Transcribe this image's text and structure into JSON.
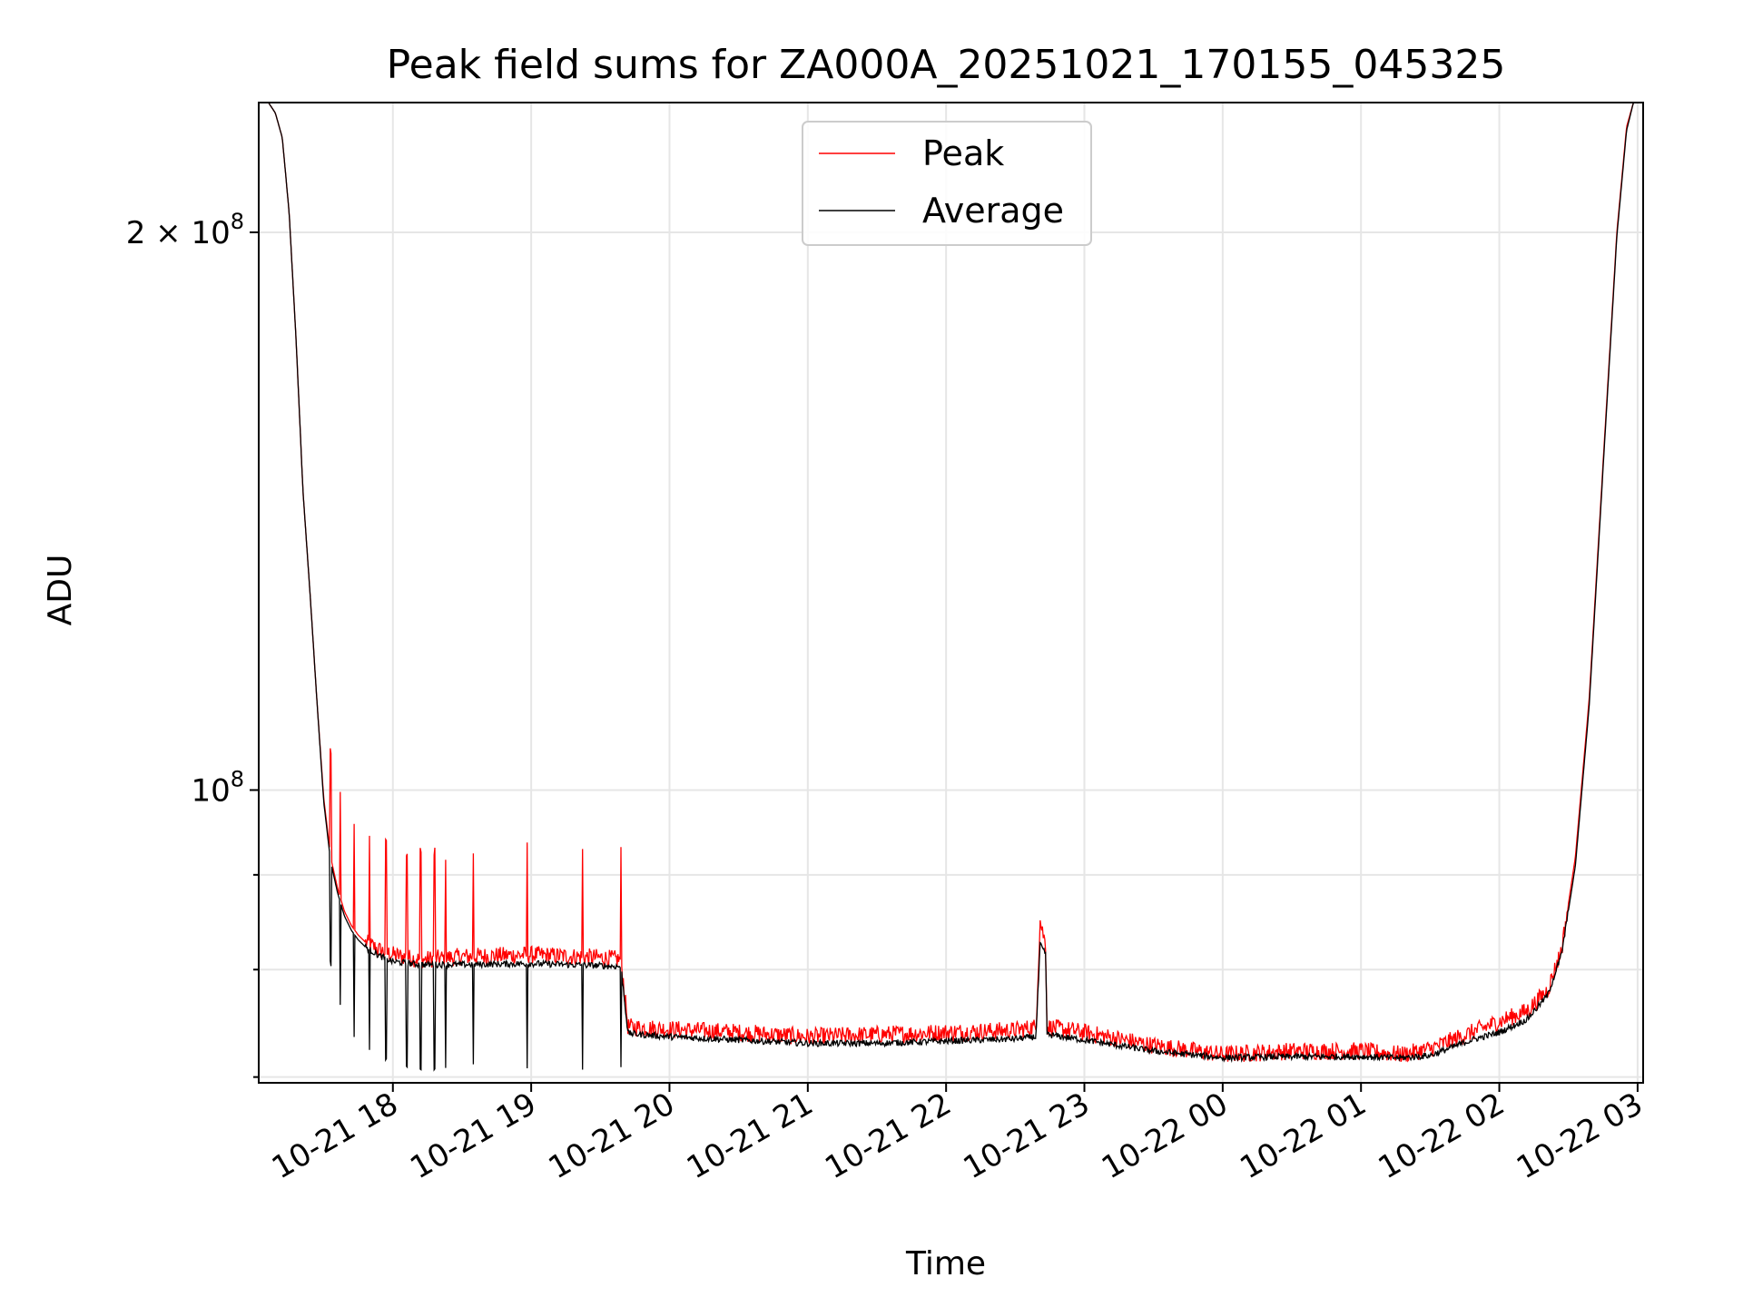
{
  "chart_data": {
    "type": "line",
    "title": "Peak field sums for ZA000A_20251021_170155_045325",
    "xlabel": "Time",
    "ylabel": "ADU",
    "yscale": "log",
    "ylim": [
      69500000,
      235000000
    ],
    "x_unit": "hours since 2025-10-21 00:00",
    "xlim": [
      17.03,
      27.04
    ],
    "grid": true,
    "legend_position": "upper center",
    "x_ticks": [
      {
        "value": 18,
        "label": "10-21 18"
      },
      {
        "value": 19,
        "label": "10-21 19"
      },
      {
        "value": 20,
        "label": "10-21 20"
      },
      {
        "value": 21,
        "label": "10-21 21"
      },
      {
        "value": 22,
        "label": "10-21 22"
      },
      {
        "value": 23,
        "label": "10-21 23"
      },
      {
        "value": 24,
        "label": "10-22 00"
      },
      {
        "value": 25,
        "label": "10-22 01"
      },
      {
        "value": 26,
        "label": "10-22 02"
      },
      {
        "value": 27,
        "label": "10-22 03"
      }
    ],
    "y_major_ticks": [
      {
        "value": 100000000,
        "base": "10",
        "exp": "8",
        "mult": ""
      },
      {
        "value": 200000000,
        "base": "10",
        "exp": "8",
        "mult": "2 × "
      }
    ],
    "y_minor_ticks": [
      70000000,
      80000000,
      90000000
    ],
    "series": [
      {
        "name": "Peak",
        "color": "#ff0000",
        "x": [
          17.03,
          17.1,
          17.15,
          17.2,
          17.25,
          17.3,
          17.35,
          17.4,
          17.45,
          17.5,
          17.55,
          17.6,
          17.65,
          17.7,
          17.75,
          17.8,
          17.9,
          18.0,
          18.2,
          18.5,
          19.0,
          19.5,
          19.65,
          19.7,
          20.0,
          20.5,
          21.0,
          21.5,
          22.0,
          22.5,
          22.65,
          22.68,
          22.72,
          22.73,
          23.0,
          23.5,
          24.0,
          24.5,
          25.0,
          25.3,
          25.5,
          25.8,
          26.0,
          26.2,
          26.35,
          26.45,
          26.55,
          26.65,
          26.75,
          26.85,
          26.92,
          26.97,
          27.04
        ],
        "y": [
          235000000,
          235000000,
          232000000,
          225000000,
          205000000,
          175000000,
          145000000,
          128000000,
          112000000,
          99000000,
          92000000,
          88500000,
          86000000,
          84500000,
          83500000,
          82800000,
          82000000,
          81500000,
          81000000,
          81300000,
          81500000,
          81200000,
          81000000,
          74500000,
          74300000,
          74000000,
          73600000,
          73800000,
          74000000,
          74200000,
          74500000,
          85000000,
          82500000,
          74500000,
          74000000,
          72800000,
          72000000,
          72300000,
          72300000,
          72000000,
          72500000,
          74000000,
          75000000,
          76000000,
          78000000,
          82000000,
          92000000,
          112000000,
          150000000,
          200000000,
          228000000,
          235000000,
          235000000
        ]
      },
      {
        "name": "Average",
        "color": "#000000",
        "x": [
          17.03,
          17.1,
          17.15,
          17.2,
          17.25,
          17.3,
          17.35,
          17.4,
          17.45,
          17.5,
          17.55,
          17.6,
          17.65,
          17.7,
          17.75,
          17.8,
          17.9,
          18.0,
          18.2,
          18.5,
          19.0,
          19.5,
          19.65,
          19.7,
          20.0,
          20.5,
          21.0,
          21.5,
          22.0,
          22.5,
          22.65,
          22.68,
          22.72,
          22.73,
          23.0,
          23.5,
          24.0,
          24.5,
          25.0,
          25.3,
          25.5,
          25.8,
          26.0,
          26.2,
          26.35,
          26.45,
          26.55,
          26.65,
          26.75,
          26.85,
          26.92,
          26.97,
          27.04
        ],
        "y": [
          235000000,
          235000000,
          232000000,
          225000000,
          205000000,
          175000000,
          145000000,
          128000000,
          112000000,
          98500000,
          91500000,
          88000000,
          85500000,
          84000000,
          83000000,
          82300000,
          81400000,
          80800000,
          80500000,
          80500000,
          80600000,
          80400000,
          80300000,
          73900000,
          73600000,
          73300000,
          73000000,
          73000000,
          73200000,
          73400000,
          73600000,
          82500000,
          81500000,
          73800000,
          73300000,
          72300000,
          71700000,
          71800000,
          71800000,
          71700000,
          71900000,
          73300000,
          74000000,
          75200000,
          77500000,
          81500000,
          91000000,
          111000000,
          149000000,
          199000000,
          227000000,
          235000000,
          235000000
        ]
      }
    ]
  }
}
